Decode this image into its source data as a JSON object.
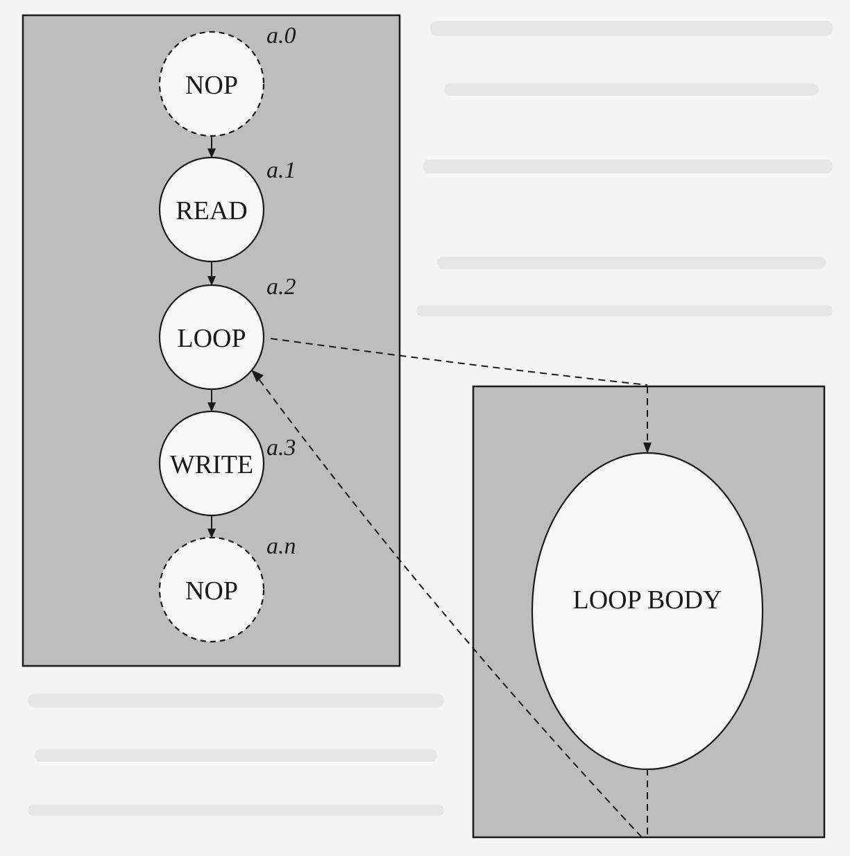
{
  "diagram": {
    "left_panel": {
      "nodes": [
        {
          "label": "NOP",
          "id_label": "a.0",
          "style": "dashed"
        },
        {
          "label": "READ",
          "id_label": "a.1",
          "style": "solid"
        },
        {
          "label": "LOOP",
          "id_label": "a.2",
          "style": "solid"
        },
        {
          "label": "WRITE",
          "id_label": "a.3",
          "style": "solid"
        },
        {
          "label": "NOP",
          "id_label": "a.n",
          "style": "dashed"
        }
      ]
    },
    "right_panel": {
      "body_label": "LOOP BODY"
    },
    "colors": {
      "panel_fill": "#bdbdbd",
      "node_fill": "#f7f7f7",
      "stroke": "#1a1a1a"
    }
  }
}
